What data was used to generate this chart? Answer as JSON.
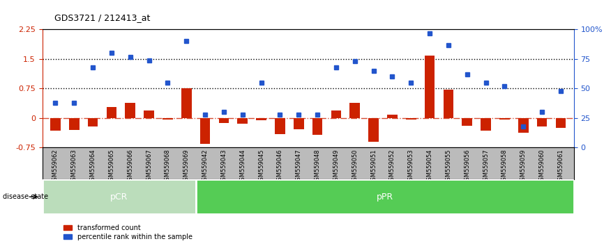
{
  "title": "GDS3721 / 212413_at",
  "samples": [
    "GSM559062",
    "GSM559063",
    "GSM559064",
    "GSM559065",
    "GSM559066",
    "GSM559067",
    "GSM559068",
    "GSM559069",
    "GSM559042",
    "GSM559043",
    "GSM559044",
    "GSM559045",
    "GSM559046",
    "GSM559047",
    "GSM559048",
    "GSM559049",
    "GSM559050",
    "GSM559051",
    "GSM559052",
    "GSM559053",
    "GSM559054",
    "GSM559055",
    "GSM559056",
    "GSM559057",
    "GSM559058",
    "GSM559059",
    "GSM559060",
    "GSM559061"
  ],
  "red_bars": [
    -0.32,
    -0.3,
    -0.22,
    0.28,
    0.38,
    0.2,
    -0.04,
    0.75,
    -0.65,
    -0.13,
    -0.15,
    -0.05,
    -0.4,
    -0.28,
    -0.42,
    0.2,
    0.38,
    -0.6,
    0.08,
    -0.04,
    1.58,
    0.72,
    -0.2,
    -0.32,
    -0.04,
    -0.37,
    -0.22,
    -0.25
  ],
  "blue_dots_pct": [
    38,
    38,
    68,
    80,
    77,
    74,
    55,
    90,
    28,
    30,
    28,
    55,
    28,
    28,
    28,
    68,
    73,
    65,
    60,
    55,
    97,
    87,
    62,
    55,
    52,
    18,
    30,
    48
  ],
  "pcr_count": 8,
  "ppr_count": 20,
  "ylim_left": [
    -0.75,
    2.25
  ],
  "ylim_right": [
    0,
    100
  ],
  "yticks_left": [
    -0.75,
    0.0,
    0.75,
    1.5,
    2.25
  ],
  "yticks_left_labels": [
    "-0.75",
    "0",
    "0.75",
    "1.5",
    "2.25"
  ],
  "yticks_right": [
    0,
    25,
    50,
    75,
    100
  ],
  "yticks_right_labels": [
    "0",
    "25",
    "50",
    "75",
    "100%"
  ],
  "hlines": [
    1.5,
    0.75
  ],
  "bar_color": "#cc2200",
  "dot_color": "#2255cc",
  "zero_line_color": "#cc2200",
  "pcr_color": "#bbddbb",
  "ppr_color": "#55cc55",
  "bg_color": "#bbbbbb",
  "legend_red": "transformed count",
  "legend_blue": "percentile rank within the sample",
  "bar_width": 0.55
}
